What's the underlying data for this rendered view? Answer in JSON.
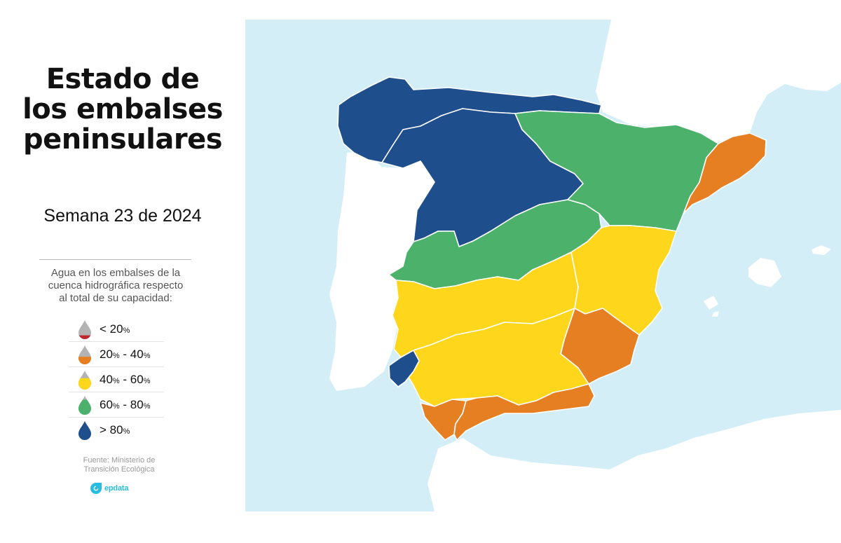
{
  "title": {
    "line1": "Estado de",
    "line2": "los embalses",
    "line3": "peninsulares"
  },
  "subtitle": "Semana 23 de 2024",
  "legend": {
    "title_line1": "Agua en los embalses de la",
    "title_line2": "cuenca hidrográfica respecto",
    "title_line3": "al total de su capacidad:",
    "items": [
      {
        "icon": "drop-icon",
        "color": "#c0272d",
        "fill_level": 0.2,
        "label": [
          {
            "t": "< 20"
          },
          {
            "t": "%",
            "s": true
          }
        ]
      },
      {
        "icon": "drop-icon",
        "color": "#e67e22",
        "fill_level": 0.4,
        "label": [
          {
            "t": "20"
          },
          {
            "t": "%",
            "s": true
          },
          {
            "t": " - 40"
          },
          {
            "t": "%",
            "s": true
          }
        ]
      },
      {
        "icon": "drop-icon",
        "color": "#fed71c",
        "fill_level": 0.6,
        "label": [
          {
            "t": "40"
          },
          {
            "t": "%",
            "s": true
          },
          {
            "t": " - 60"
          },
          {
            "t": "%",
            "s": true
          }
        ]
      },
      {
        "icon": "drop-icon",
        "color": "#4cb26b",
        "fill_level": 0.8,
        "label": [
          {
            "t": "60"
          },
          {
            "t": "%",
            "s": true
          },
          {
            "t": " - 80"
          },
          {
            "t": "%",
            "s": true
          }
        ]
      },
      {
        "icon": "drop-icon",
        "color": "#1f4e8c",
        "fill_level": 1.0,
        "label": [
          {
            "t": "> 80"
          },
          {
            "t": "%",
            "s": true
          }
        ]
      }
    ]
  },
  "source": {
    "line1": "Fuente: Ministerio de",
    "line2": "Transición Ecológica"
  },
  "brand": {
    "name": "epdata",
    "icon": "epdata-logo-icon"
  },
  "map": {
    "colors": {
      "sea": "#d3eef7",
      "land": "#ffffff",
      "border": "#ffffff",
      "empty_drop": "#b3b3b3"
    },
    "basins": [
      {
        "id": "galicia-cantabrico",
        "level": "> 80%",
        "color": "#1f4e8c"
      },
      {
        "id": "duero",
        "level": "> 80%",
        "color": "#1f4e8c"
      },
      {
        "id": "ebro",
        "level": "60% - 80%",
        "color": "#4cb26b"
      },
      {
        "id": "cuencas-internas-cataluna",
        "level": "20% - 40%",
        "color": "#e67e22"
      },
      {
        "id": "tajo",
        "level": "60% - 80%",
        "color": "#4cb26b"
      },
      {
        "id": "guadiana",
        "level": "40% - 60%",
        "color": "#fed71c"
      },
      {
        "id": "jucar",
        "level": "40% - 60%",
        "color": "#fed71c"
      },
      {
        "id": "segura",
        "level": "20% - 40%",
        "color": "#e67e22"
      },
      {
        "id": "guadalquivir",
        "level": "40% - 60%",
        "color": "#fed71c"
      },
      {
        "id": "tinto-odiel-piedras",
        "level": "> 80%",
        "color": "#1f4e8c"
      },
      {
        "id": "guadalete-barbate",
        "level": "20% - 40%",
        "color": "#e67e22"
      },
      {
        "id": "cuenca-mediterranea-andaluza",
        "level": "20% - 40%",
        "color": "#e67e22"
      }
    ]
  }
}
